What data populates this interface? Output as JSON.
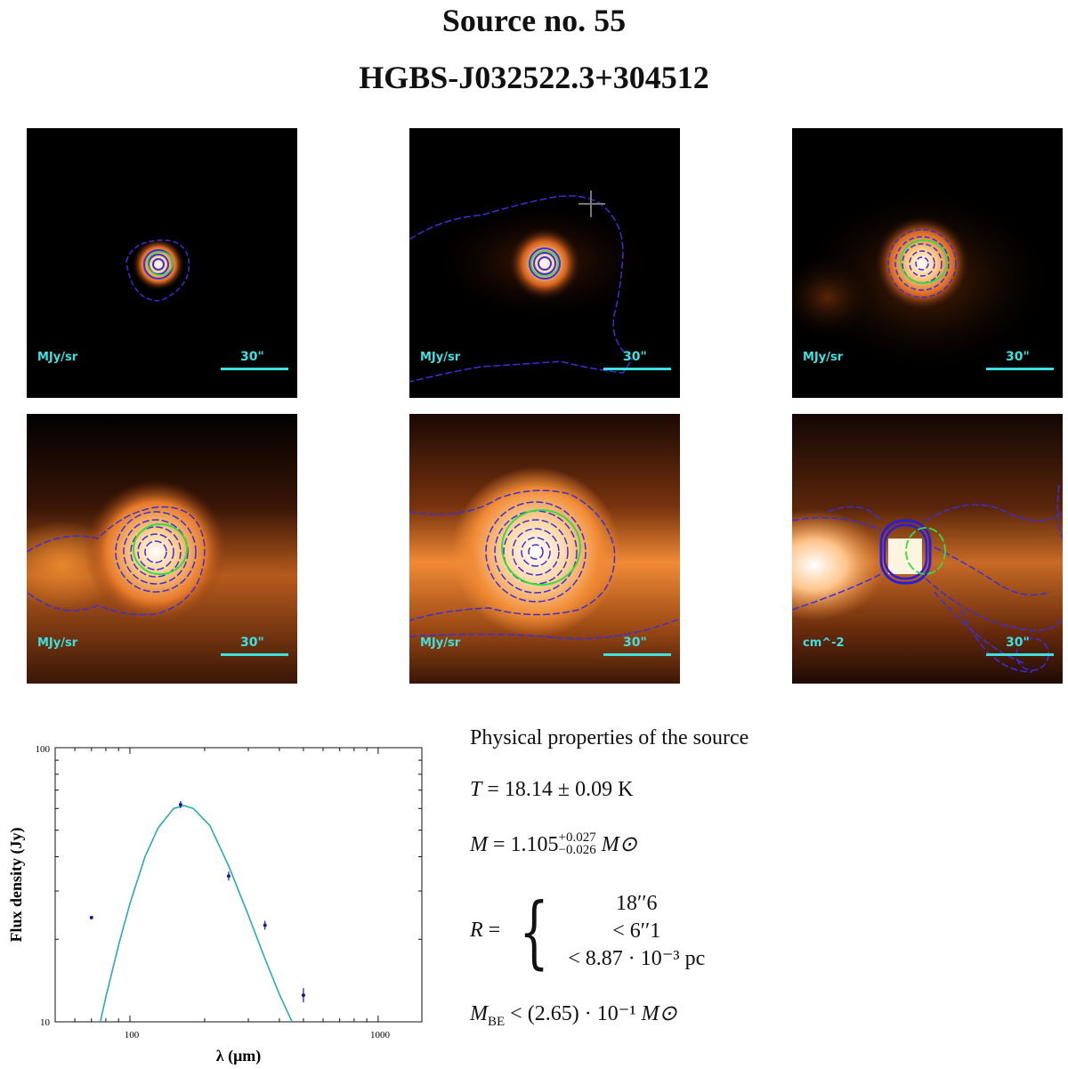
{
  "header": {
    "title": "Source no. 55",
    "designation": "HGBS-J032522.3+304512"
  },
  "panels": [
    {
      "unit": "MJy/sr",
      "scale": "30\""
    },
    {
      "unit": "MJy/sr",
      "scale": "30\""
    },
    {
      "unit": "MJy/sr",
      "scale": "30\""
    },
    {
      "unit": "MJy/sr",
      "scale": "30\""
    },
    {
      "unit": "MJy/sr",
      "scale": "30\""
    },
    {
      "unit": "cm^-2",
      "scale": "30\""
    }
  ],
  "colors": {
    "background": "#000000",
    "core": "#ff8c2a",
    "contour": "#3d2fd6",
    "ellipse": "#33dd44",
    "label": "#3ee0e0",
    "fit_curve": "#2aaab4",
    "data_points": "#1a1a9a"
  },
  "properties": {
    "heading": "Physical properties of the source",
    "T": {
      "symbol": "T",
      "eq": "=",
      "value": "18.14 ± 0.09 K"
    },
    "M": {
      "symbol": "M",
      "eq": "=",
      "value": "1.105",
      "sup": "+0.027",
      "sub": "−0.026",
      "unit": "M⊙"
    },
    "R": {
      "symbol": "R",
      "eq": "=",
      "lines": [
        "18′′6",
        "< 6′′1",
        "< 8.87 · 10⁻³ pc"
      ]
    },
    "MBE": {
      "symbol": "M",
      "sub": "BE",
      "rel": "<",
      "value": "(2.65) · 10⁻¹",
      "unit": "M⊙"
    }
  },
  "chart_data": {
    "type": "scatter",
    "xlabel": "λ (μm)",
    "ylabel": "Flux density (Jy)",
    "xscale": "log",
    "yscale": "log",
    "xlim": [
      50,
      1500
    ],
    "ylim": [
      10,
      100
    ],
    "x_ticks": [
      "100",
      "1000"
    ],
    "y_ticks": [
      "10",
      "100"
    ],
    "grid": false,
    "points": [
      {
        "x": 70,
        "y": 24
      },
      {
        "x": 160,
        "y": 62
      },
      {
        "x": 250,
        "y": 34
      },
      {
        "x": 350,
        "y": 22.5
      },
      {
        "x": 500,
        "y": 12.5
      }
    ],
    "error_bars": [
      0,
      0.4,
      0.5,
      0.5,
      0.8
    ],
    "fit_curve": {
      "x": [
        76,
        80,
        90,
        100,
        115,
        130,
        150,
        165,
        180,
        210,
        250,
        300,
        350,
        400,
        450
      ],
      "y": [
        10,
        12.3,
        19,
        27,
        40,
        51,
        60,
        61.5,
        60,
        52,
        37,
        24.5,
        17,
        12.6,
        10
      ]
    }
  }
}
